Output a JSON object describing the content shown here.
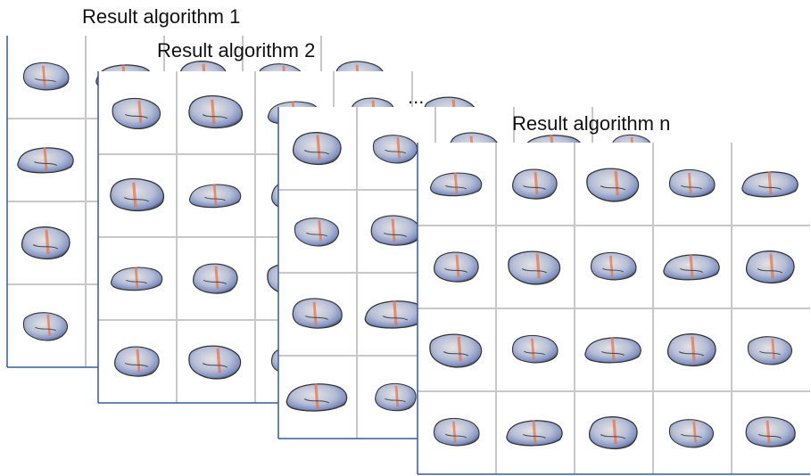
{
  "labels": {
    "panel_1": "Result algorithm 1",
    "panel_2": "Result algorithm 2",
    "ellipsis": "...",
    "panel_n": "Result algorithm n"
  }
}
